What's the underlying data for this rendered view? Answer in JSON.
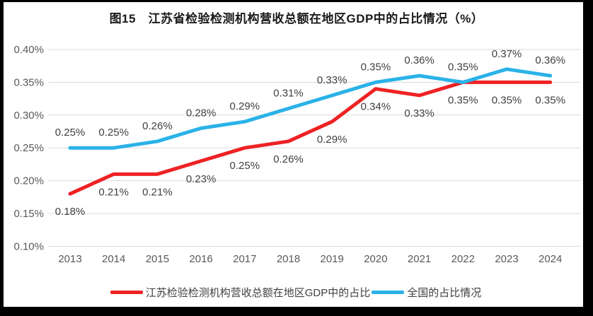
{
  "chart_data": {
    "type": "line",
    "title": "图15　江苏省检验检测机构营收总额在地区GDP中的占比情况（%）",
    "categories": [
      "2013",
      "2014",
      "2015",
      "2016",
      "2017",
      "2018",
      "2019",
      "2020",
      "2021",
      "2022",
      "2023",
      "2024"
    ],
    "y_ticks": [
      "0.40%",
      "0.35%",
      "0.30%",
      "0.25%",
      "0.20%",
      "0.15%",
      "0.10%"
    ],
    "ylim": [
      0.1,
      0.4
    ],
    "grid": true,
    "legend_position": "bottom",
    "series": [
      {
        "name": "江苏检验检测机构营收总额在地区GDP中的占比",
        "color": "#EE2224",
        "label_side": "below",
        "values": [
          0.18,
          0.21,
          0.21,
          0.23,
          0.25,
          0.26,
          0.29,
          0.34,
          0.33,
          0.35,
          0.35,
          0.35
        ],
        "labels": [
          "0.18%",
          "0.21%",
          "0.21%",
          "0.23%",
          "0.25%",
          "0.26%",
          "0.29%",
          "0.34%",
          "0.33%",
          "0.35%",
          "0.35%",
          "0.35%"
        ]
      },
      {
        "name": "全国的占比情况",
        "color": "#2AB2E8",
        "label_side": "above",
        "values": [
          0.25,
          0.25,
          0.26,
          0.28,
          0.29,
          0.31,
          0.33,
          0.35,
          0.36,
          0.35,
          0.37,
          0.36
        ],
        "labels": [
          "0.25%",
          "0.25%",
          "0.26%",
          "0.28%",
          "0.29%",
          "0.31%",
          "0.33%",
          "0.35%",
          "0.36%",
          "0.35%",
          "0.37%",
          "0.36%"
        ]
      }
    ]
  },
  "colors": {
    "grid": "#d9d9d9",
    "axis_text": "#595959",
    "data_label_text": "#404040",
    "title_text": "#1a1a1a",
    "background": "#ffffff",
    "frame": "#000000"
  }
}
